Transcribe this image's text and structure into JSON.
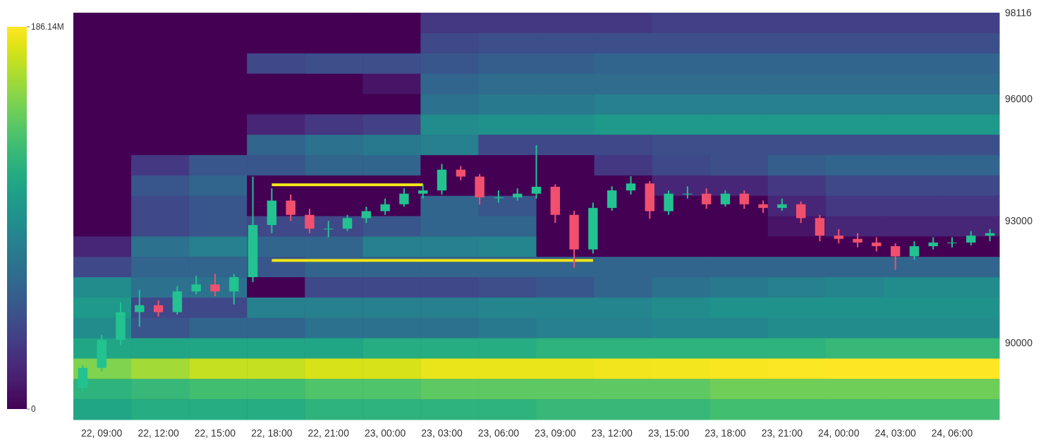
{
  "chart_data": [
    {
      "type": "heatmap",
      "categories": [
        null,
        null,
        null,
        null,
        null,
        null,
        null,
        null,
        null,
        null,
        null,
        null,
        null,
        null,
        null,
        null
      ],
      "y_categories": [
        null,
        null,
        null,
        null,
        null,
        null,
        null,
        null,
        null,
        null,
        null,
        null,
        null,
        null,
        null,
        null,
        null,
        null,
        null,
        null
      ],
      "cells": [
        [
          0,
          0,
          0,
          0,
          0,
          0,
          30,
          30,
          30,
          30,
          35,
          35,
          35,
          35,
          35,
          35
        ],
        [
          0,
          0,
          0,
          0,
          0,
          0,
          40,
          45,
          45,
          45,
          45,
          45,
          45,
          45,
          45,
          45
        ],
        [
          0,
          0,
          0,
          40,
          45,
          45,
          50,
          55,
          55,
          60,
          60,
          60,
          60,
          60,
          60,
          60
        ],
        [
          0,
          0,
          0,
          0,
          0,
          10,
          60,
          65,
          65,
          65,
          65,
          65,
          65,
          65,
          65,
          65
        ],
        [
          0,
          0,
          0,
          0,
          0,
          0,
          70,
          75,
          75,
          80,
          80,
          80,
          80,
          80,
          80,
          80
        ],
        [
          0,
          0,
          0,
          20,
          30,
          35,
          90,
          95,
          95,
          100,
          100,
          100,
          100,
          100,
          100,
          100
        ],
        [
          0,
          0,
          0,
          60,
          70,
          75,
          80,
          40,
          40,
          40,
          45,
          45,
          45,
          45,
          45,
          45
        ],
        [
          0,
          30,
          50,
          50,
          60,
          60,
          0,
          0,
          0,
          30,
          40,
          45,
          55,
          60,
          60,
          60
        ],
        [
          0,
          50,
          60,
          0,
          0,
          0,
          0,
          0,
          0,
          0,
          20,
          20,
          30,
          40,
          40,
          40
        ],
        [
          0,
          40,
          50,
          0,
          0,
          0,
          60,
          50,
          0,
          0,
          0,
          0,
          20,
          30,
          30,
          30
        ],
        [
          0,
          40,
          50,
          40,
          40,
          50,
          60,
          60,
          0,
          0,
          0,
          0,
          10,
          20,
          20,
          20
        ],
        [
          20,
          70,
          80,
          60,
          60,
          80,
          80,
          85,
          0,
          0,
          0,
          0,
          0,
          0,
          0,
          0
        ],
        [
          40,
          60,
          60,
          50,
          60,
          60,
          60,
          60,
          60,
          60,
          60,
          60,
          60,
          60,
          60,
          60
        ],
        [
          90,
          70,
          70,
          0,
          40,
          40,
          40,
          45,
          50,
          60,
          70,
          75,
          80,
          85,
          90,
          90
        ],
        [
          100,
          40,
          40,
          80,
          80,
          80,
          80,
          85,
          85,
          85,
          90,
          95,
          95,
          95,
          95,
          95
        ],
        [
          90,
          50,
          60,
          60,
          70,
          70,
          70,
          75,
          80,
          80,
          85,
          85,
          90,
          90,
          90,
          90
        ],
        [
          110,
          110,
          110,
          110,
          110,
          115,
          115,
          115,
          120,
          120,
          120,
          120,
          120,
          125,
          125,
          125
        ],
        [
          150,
          160,
          170,
          170,
          175,
          175,
          180,
          180,
          180,
          182,
          183,
          184,
          185,
          186,
          186,
          186
        ],
        [
          120,
          125,
          130,
          130,
          135,
          135,
          140,
          140,
          140,
          140,
          140,
          145,
          145,
          145,
          145,
          145
        ],
        [
          110,
          115,
          115,
          115,
          120,
          120,
          120,
          120,
          125,
          125,
          125,
          130,
          130,
          130,
          130,
          130
        ]
      ],
      "clim": [
        0,
        186.14
      ],
      "cticks": [
        {
          "value": 0,
          "label": "0"
        },
        {
          "value": 186.14,
          "label": "186.14M"
        }
      ]
    },
    {
      "type": "candlestick",
      "categories": [
        null,
        "22, 09:00",
        null,
        null,
        "22, 12:00",
        null,
        null,
        "22, 15:00",
        null,
        null,
        "22, 18:00",
        null,
        null,
        "22, 21:00",
        null,
        null,
        "23, 00:00",
        null,
        null,
        "23, 03:00",
        null,
        null,
        "23, 06:00",
        null,
        null,
        "23, 09:00",
        null,
        null,
        "23, 12:00",
        null,
        null,
        "23, 15:00",
        null,
        null,
        "23, 18:00",
        null,
        null,
        "23, 21:00",
        null,
        null,
        "24, 00:00",
        null,
        null,
        "24, 03:00",
        null,
        null,
        "24, 06:00",
        null,
        null
      ],
      "ohlc": [
        [
          88900,
          89450,
          88800,
          89390
        ],
        [
          89390,
          90200,
          89300,
          90080
        ],
        [
          90080,
          91000,
          89950,
          90760
        ],
        [
          90760,
          91300,
          90400,
          90930
        ],
        [
          90930,
          91050,
          90650,
          90760
        ],
        [
          90760,
          91400,
          90700,
          91270
        ],
        [
          91270,
          91650,
          91200,
          91440
        ],
        [
          91440,
          91700,
          91150,
          91270
        ],
        [
          91270,
          91700,
          90950,
          91620
        ],
        [
          91620,
          94090,
          91500,
          92900
        ],
        [
          92900,
          93800,
          92700,
          93500
        ],
        [
          93500,
          93650,
          93000,
          93150
        ],
        [
          93150,
          93300,
          92700,
          92810
        ],
        [
          92810,
          93000,
          92600,
          92810
        ],
        [
          92810,
          93150,
          92750,
          93070
        ],
        [
          93070,
          93350,
          92950,
          93240
        ],
        [
          93240,
          93550,
          93150,
          93410
        ],
        [
          93410,
          93800,
          93350,
          93670
        ],
        [
          93670,
          93900,
          93550,
          93750
        ],
        [
          93750,
          94400,
          93650,
          94260
        ],
        [
          94260,
          94350,
          94000,
          94090
        ],
        [
          94090,
          94150,
          93400,
          93580
        ],
        [
          93580,
          93750,
          93450,
          93580
        ],
        [
          93580,
          93800,
          93500,
          93670
        ],
        [
          93670,
          94860,
          93550,
          93840
        ],
        [
          93840,
          93900,
          92950,
          93150
        ],
        [
          93150,
          93250,
          91850,
          92300
        ],
        [
          92300,
          93450,
          92200,
          93320
        ],
        [
          93320,
          93850,
          93250,
          93750
        ],
        [
          93750,
          94100,
          93650,
          93920
        ],
        [
          93920,
          93980,
          93050,
          93240
        ],
        [
          93240,
          93750,
          93150,
          93670
        ],
        [
          93670,
          93850,
          93550,
          93670
        ],
        [
          93670,
          93800,
          93300,
          93410
        ],
        [
          93410,
          93750,
          93350,
          93670
        ],
        [
          93670,
          93750,
          93300,
          93410
        ],
        [
          93410,
          93500,
          93200,
          93320
        ],
        [
          93320,
          93550,
          93250,
          93410
        ],
        [
          93410,
          93480,
          92950,
          93070
        ],
        [
          93070,
          93150,
          92500,
          92640
        ],
        [
          92640,
          92800,
          92450,
          92560
        ],
        [
          92560,
          92700,
          92350,
          92470
        ],
        [
          92470,
          92600,
          92250,
          92380
        ],
        [
          92380,
          92450,
          91800,
          92130
        ],
        [
          92130,
          92500,
          92050,
          92380
        ],
        [
          92380,
          92600,
          92300,
          92470
        ],
        [
          92470,
          92600,
          92350,
          92470
        ],
        [
          92470,
          92750,
          92400,
          92640
        ],
        [
          92640,
          92800,
          92500,
          92700
        ]
      ],
      "ylim": [
        88120,
        98116
      ],
      "yticks": [
        90000,
        93000,
        96000,
        98116
      ],
      "series": [
        {
          "type": "line",
          "values": [
            null,
            null,
            null,
            null,
            null,
            null,
            null,
            null,
            null,
            null,
            93890,
            93890,
            93890,
            93890,
            93890,
            93890,
            93890,
            93890,
            93890,
            null,
            null,
            null,
            null,
            null,
            null,
            null,
            null,
            null,
            null,
            null,
            null,
            null,
            null,
            null,
            null,
            null,
            null,
            null,
            null,
            null,
            null,
            null,
            null,
            null,
            null,
            null,
            null,
            null,
            null
          ],
          "color": "#f0e516"
        },
        {
          "type": "line",
          "values": [
            null,
            null,
            null,
            null,
            null,
            null,
            null,
            null,
            null,
            null,
            92030,
            92030,
            92030,
            92030,
            92030,
            92030,
            92030,
            92030,
            92030,
            92030,
            92030,
            92030,
            92030,
            92030,
            92030,
            92030,
            92030,
            92030,
            null,
            null,
            null,
            null,
            null,
            null,
            null,
            null,
            null,
            null,
            null,
            null,
            null,
            null,
            null,
            null,
            null,
            null,
            null,
            null,
            null
          ],
          "color": "#f0e516"
        }
      ]
    }
  ]
}
